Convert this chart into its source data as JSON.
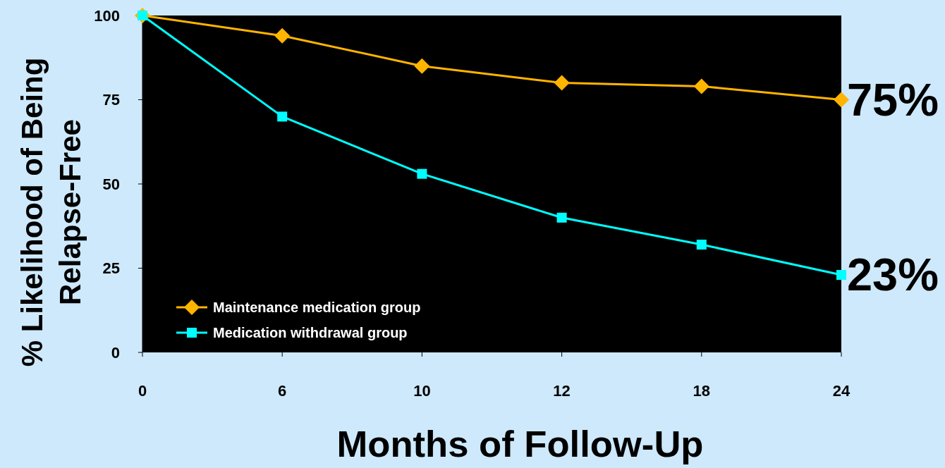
{
  "chart_data": {
    "type": "line",
    "xlabel": "Months of Follow-Up",
    "ylabel": "% Likelihood of Being Relapse-Free",
    "categories": [
      "0",
      "6",
      "10",
      "12",
      "18",
      "24"
    ],
    "series": [
      {
        "name": "Maintenance medication group",
        "color": "#ffb400",
        "marker": "diamond",
        "values": [
          100,
          94,
          85,
          80,
          79,
          75
        ]
      },
      {
        "name": "Medication withdrawal group",
        "color": "#00ffff",
        "marker": "square",
        "values": [
          100,
          70,
          53,
          40,
          32,
          23
        ]
      }
    ],
    "ylim": [
      0,
      100
    ],
    "yticks": [
      0,
      25,
      50,
      75,
      100
    ],
    "legend": "bottom left",
    "line_style": "solid",
    "annotations": [
      {
        "text": "75%",
        "x": "24",
        "y": 75
      },
      {
        "text": "23%",
        "x": "24",
        "y": 23
      }
    ]
  }
}
